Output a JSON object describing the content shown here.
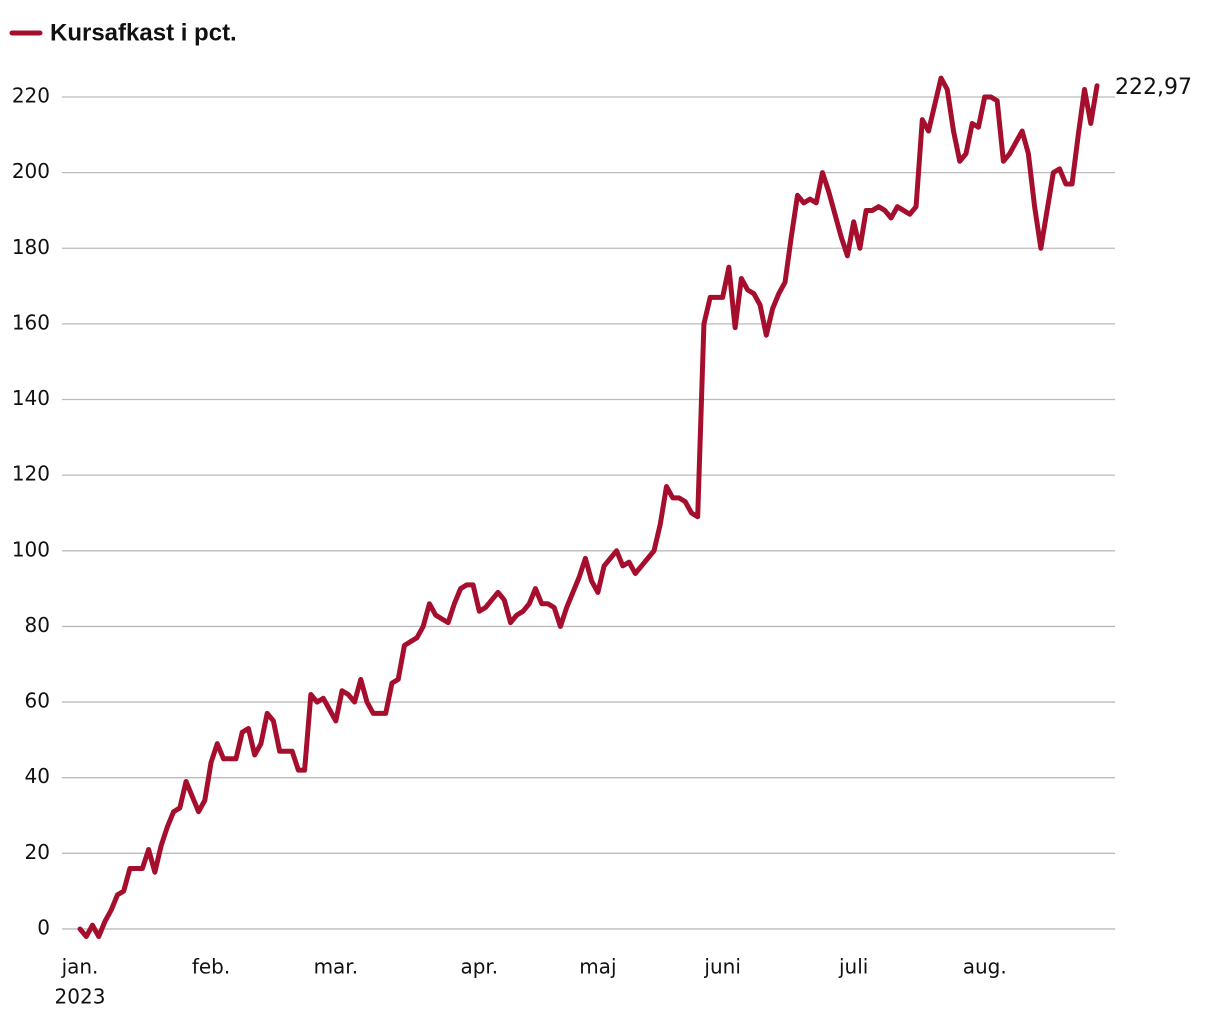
{
  "chart_data": {
    "type": "line",
    "categories": [
      "jan.",
      null,
      null,
      null,
      null,
      null,
      null,
      null,
      null,
      null,
      null,
      null,
      null,
      null,
      null,
      null,
      null,
      null,
      null,
      null,
      null,
      "feb.",
      null,
      null,
      null,
      null,
      null,
      null,
      null,
      null,
      null,
      null,
      null,
      null,
      null,
      null,
      null,
      null,
      null,
      null,
      null,
      "mar.",
      null,
      null,
      null,
      null,
      null,
      null,
      null,
      null,
      null,
      null,
      null,
      null,
      null,
      null,
      null,
      null,
      null,
      null,
      null,
      null,
      null,
      null,
      "apr.",
      null,
      null,
      null,
      null,
      null,
      null,
      null,
      null,
      null,
      null,
      null,
      null,
      null,
      null,
      null,
      null,
      null,
      null,
      "maj",
      null,
      null,
      null,
      null,
      null,
      null,
      null,
      null,
      null,
      null,
      null,
      null,
      null,
      null,
      null,
      null,
      null,
      null,
      null,
      "juni",
      null,
      null,
      null,
      null,
      null,
      null,
      null,
      null,
      null,
      null,
      null,
      null,
      null,
      null,
      null,
      null,
      null,
      null,
      null,
      null,
      "juli",
      null,
      null,
      null,
      null,
      null,
      null,
      null,
      null,
      null,
      null,
      null,
      null,
      null,
      null,
      null,
      null,
      null,
      null,
      null,
      null,
      "aug.",
      null,
      null,
      null,
      null,
      null,
      null,
      null,
      null,
      null,
      null,
      null,
      null,
      null,
      null,
      null,
      null,
      null,
      null
    ],
    "year_label": "2023",
    "series": [
      {
        "name": "Kursafkast i pct.",
        "color": "#a50f2d",
        "values": [
          0,
          -2,
          1,
          -2,
          2,
          5,
          9,
          10,
          16,
          16,
          16,
          21,
          15,
          22,
          27,
          31,
          32,
          39,
          35,
          31,
          34,
          44,
          49,
          45,
          45,
          45,
          52,
          53,
          46,
          49,
          57,
          55,
          47,
          47,
          47,
          42,
          42,
          62,
          60,
          61,
          58,
          55,
          63,
          62,
          60,
          66,
          60,
          57,
          57,
          57,
          65,
          66,
          75,
          76,
          77,
          80,
          86,
          83,
          82,
          81,
          86,
          90,
          91,
          91,
          84,
          85,
          87,
          89,
          87,
          81,
          83,
          84,
          86,
          90,
          86,
          86,
          85,
          80,
          85,
          89,
          93,
          98,
          92,
          89,
          96,
          98,
          100,
          96,
          97,
          94,
          96,
          98,
          100,
          107,
          117,
          114,
          114,
          113,
          110,
          109,
          160,
          167,
          167,
          167,
          175,
          159,
          172,
          169,
          168,
          165,
          157,
          164,
          168,
          171,
          183,
          194,
          192,
          193,
          192,
          200,
          195,
          189,
          183,
          178,
          187,
          180,
          190,
          190,
          191,
          190,
          188,
          191,
          190,
          189,
          191,
          214,
          211,
          218,
          225,
          222,
          211,
          203,
          205,
          213,
          212,
          220,
          220,
          219,
          203,
          205,
          208,
          211,
          205,
          191,
          180,
          190,
          200,
          201,
          197,
          197,
          210,
          222,
          213,
          222.97
        ],
        "end_label": "222,97"
      }
    ],
    "ylim": [
      -3,
      226
    ],
    "yticks": [
      0,
      20,
      40,
      60,
      80,
      100,
      120,
      140,
      160,
      180,
      200,
      220
    ],
    "grid": true
  }
}
